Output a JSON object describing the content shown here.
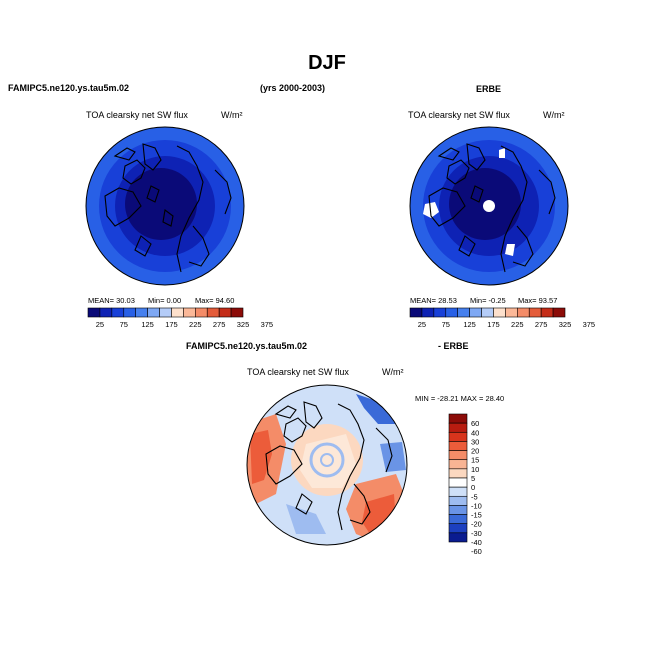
{
  "season": "DJF",
  "model_name": "FAMIPC5.ne120.ys.tau5m.02",
  "years": "(yrs 2000-2003)",
  "obs_name": "ERBE",
  "diff_suffix": "- ERBE",
  "colors": {
    "abs_scale": [
      "#0a0a78",
      "#0e22b4",
      "#1840d8",
      "#2860e6",
      "#4680ee",
      "#7ea8f4",
      "#b4ccf8",
      "#fde0cc",
      "#fbb898",
      "#f48c68",
      "#e45c3a",
      "#c42c18",
      "#8c0c08"
    ],
    "diff_scale": [
      "#8c0c08",
      "#b81c10",
      "#d8341c",
      "#ec5c3a",
      "#f48c68",
      "#f8b494",
      "#fcd8c0",
      "#ffffff",
      "#cfe0f8",
      "#9ebcf0",
      "#6a94e6",
      "#3a6ad8",
      "#1c40c0",
      "#0a1c90"
    ],
    "land_outline": "#000000",
    "ocean_dark": "#0a0a6e"
  },
  "chart_data": [
    {
      "type": "heatmap",
      "projection": "north-polar-stereographic",
      "title": "TOA clearsky net SW flux",
      "units": "W/m²",
      "stats": {
        "mean": 30.03,
        "min": 0.0,
        "max": 94.6
      },
      "stats_text": {
        "mean": "MEAN=  30.03",
        "min": "Min=   0.00",
        "max": "Max=  94.60"
      },
      "colorbar_ticks": [
        "25",
        "75",
        "125",
        "175",
        "225",
        "275",
        "325",
        "375"
      ],
      "colorbar_levels": [
        25,
        50,
        75,
        100,
        125,
        150,
        175,
        200,
        225,
        250,
        275,
        300,
        325,
        350,
        375
      ],
      "zonal_values_w_m2": {
        "pole": 0,
        "lat_70": 10,
        "lat_60": 25,
        "lat_50": 45,
        "rim": 60
      }
    },
    {
      "type": "heatmap",
      "projection": "north-polar-stereographic",
      "title": "TOA clearsky net SW flux",
      "units": "W/m²",
      "stats": {
        "mean": 28.53,
        "min": -0.25,
        "max": 93.57
      },
      "stats_text": {
        "mean": "MEAN=  28.53",
        "min": "Min=  -0.25",
        "max": "Max=  93.57"
      },
      "colorbar_ticks": [
        "25",
        "75",
        "125",
        "175",
        "225",
        "275",
        "325",
        "375"
      ],
      "colorbar_levels": [
        25,
        50,
        75,
        100,
        125,
        150,
        175,
        200,
        225,
        250,
        275,
        300,
        325,
        350,
        375
      ],
      "zonal_values_w_m2": {
        "pole": 0,
        "lat_70": 10,
        "lat_60": 25,
        "lat_50": 45,
        "rim": 60
      },
      "missing_data": true
    },
    {
      "type": "heatmap",
      "projection": "north-polar-stereographic",
      "title": "TOA clearsky net SW flux",
      "units": "W/m²",
      "stats": {
        "min": -28.21,
        "max": 28.4
      },
      "stats_text": "MIN = -28.21  MAX =  28.40",
      "colorbar_ticks": [
        "60",
        "40",
        "30",
        "20",
        "15",
        "10",
        "5",
        "0",
        "-5",
        "-10",
        "-15",
        "-20",
        "-30",
        "-40",
        "-60"
      ],
      "colorbar_levels": [
        60,
        40,
        30,
        20,
        15,
        10,
        5,
        0,
        -5,
        -10,
        -15,
        -20,
        -30,
        -40,
        -60
      ]
    }
  ]
}
